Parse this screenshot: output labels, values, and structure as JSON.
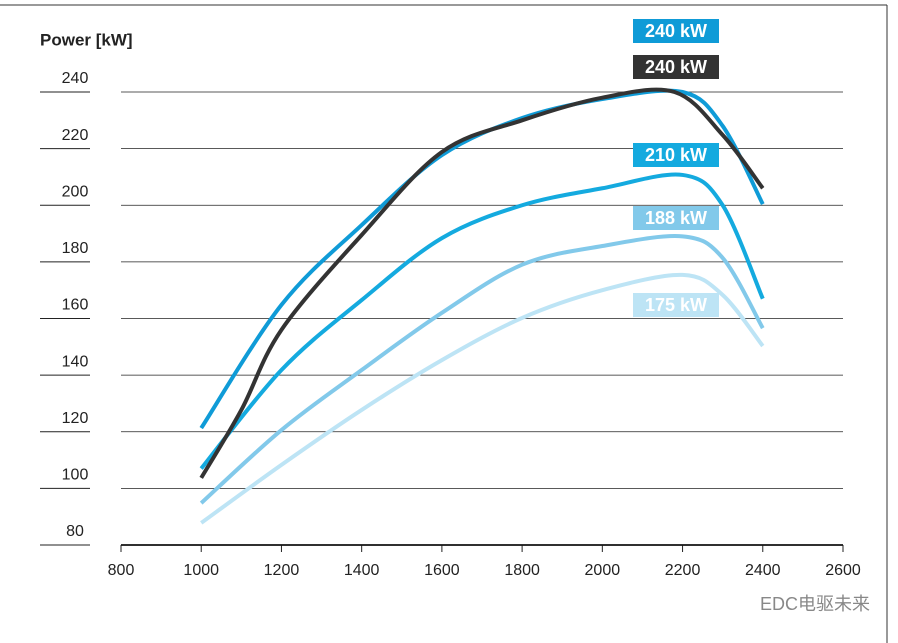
{
  "chart_data": {
    "type": "line",
    "y_label": "Power [kW]",
    "xlim": [
      800,
      2600
    ],
    "xticks": [
      800,
      1000,
      1200,
      1400,
      1600,
      1800,
      2000,
      2200,
      2400,
      2600
    ],
    "ylim": [
      80,
      240
    ],
    "yticks": [
      80,
      100,
      120,
      140,
      160,
      180,
      200,
      220,
      240
    ],
    "grid": true,
    "series": [
      {
        "name": "240 kW",
        "color": "#0f9bd7",
        "x": [
          1000,
          1200,
          1400,
          1600,
          1800,
          2000,
          2200,
          2300,
          2400
        ],
        "values": [
          121.3,
          164.8,
          193,
          217.7,
          230.8,
          237.5,
          240,
          228,
          200.4
        ]
      },
      {
        "name": "240 kW",
        "color": "#333333",
        "x": [
          1000,
          1100,
          1200,
          1400,
          1600,
          1800,
          2000,
          2180,
          2300,
          2400
        ],
        "values": [
          103.7,
          127.7,
          156,
          189.5,
          218.8,
          230,
          238,
          240,
          224.8,
          206
        ]
      },
      {
        "name": "210 kW",
        "color": "#14aadf",
        "x": [
          1000,
          1200,
          1400,
          1600,
          1800,
          2000,
          2200,
          2300,
          2400
        ],
        "values": [
          107,
          141.8,
          166.5,
          188.4,
          200,
          206,
          210.7,
          200,
          167
        ]
      },
      {
        "name": "188 kW",
        "color": "#82c9ea",
        "x": [
          1000,
          1200,
          1400,
          1600,
          1800,
          2000,
          2200,
          2300,
          2400
        ],
        "values": [
          94.8,
          120.6,
          141.8,
          162,
          179,
          185.6,
          189,
          181.4,
          156.6
        ]
      },
      {
        "name": "175 kW",
        "color": "#bde4f5",
        "x": [
          1000,
          1200,
          1400,
          1600,
          1800,
          2000,
          2200,
          2300,
          2400
        ],
        "values": [
          87.8,
          108.3,
          127.7,
          145.3,
          160.2,
          170,
          175.4,
          168.3,
          150.3
        ]
      }
    ],
    "watermark": "EDC电驱未来"
  }
}
